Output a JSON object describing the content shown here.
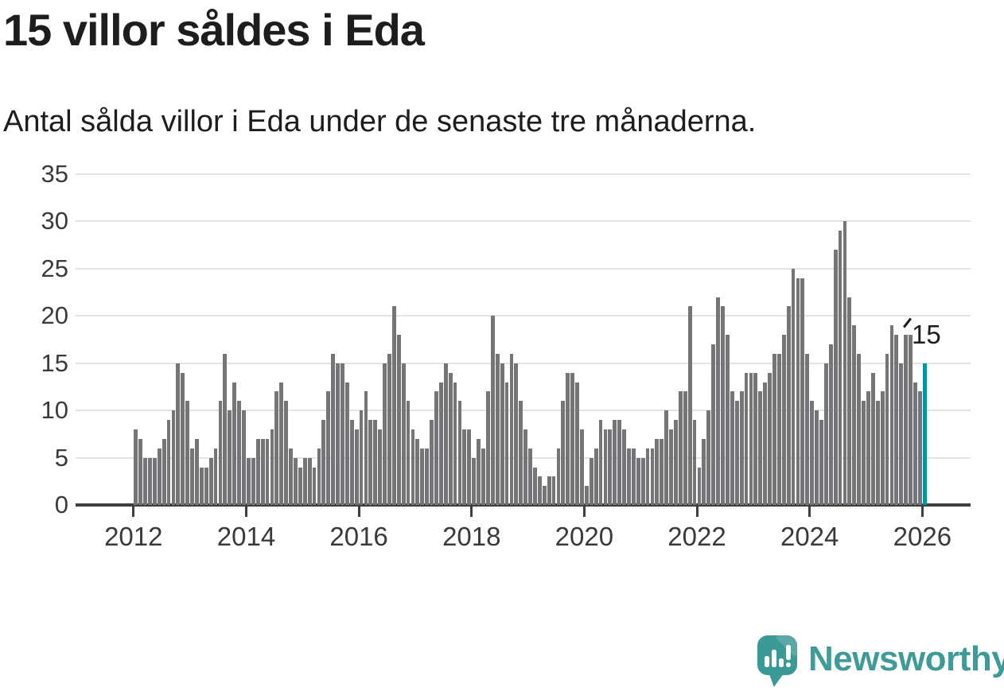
{
  "header": {
    "title": "15 villor såldes i Eda",
    "subtitle": "Antal sålda villor i Eda under de senaste tre månaderna."
  },
  "annotation": {
    "last_value_label": "15"
  },
  "footer": {
    "brand": "Newsworthy",
    "logo_icon": "speech-bubble-bar-chart-icon"
  },
  "colors": {
    "bar": "#757578",
    "highlight": "#00969b",
    "grid": "#e3e3e3",
    "axis": "#3f3f3e",
    "text": "#1d1d1b",
    "tick_text": "#3a3a3a",
    "brand_teal": "#3f9b98"
  },
  "chart_data": {
    "type": "bar",
    "title": "15 villor såldes i Eda",
    "subtitle": "Antal sålda villor i Eda under de senaste tre månaderna.",
    "frequency": "monthly",
    "x_start": "2012-01",
    "x_end": "2026-01",
    "ylim": [
      0,
      35
    ],
    "yticks": [
      0,
      5,
      10,
      15,
      20,
      25,
      30,
      35
    ],
    "xticks": [
      "2012",
      "2014",
      "2016",
      "2018",
      "2020",
      "2022",
      "2024",
      "2026"
    ],
    "grid": true,
    "legend": "none",
    "highlight_last": true,
    "last_value": 15,
    "values": [
      8,
      7,
      5,
      5,
      5,
      6,
      7,
      9,
      10,
      15,
      14,
      11,
      6,
      7,
      4,
      4,
      5,
      6,
      11,
      16,
      10,
      13,
      11,
      10,
      5,
      5,
      7,
      7,
      7,
      8,
      12,
      13,
      11,
      6,
      5,
      4,
      5,
      5,
      4,
      6,
      9,
      12,
      16,
      15,
      15,
      13,
      9,
      8,
      10,
      12,
      9,
      9,
      8,
      15,
      16,
      21,
      18,
      15,
      11,
      8,
      7,
      6,
      6,
      9,
      12,
      13,
      15,
      14,
      13,
      11,
      8,
      8,
      5,
      7,
      6,
      12,
      20,
      16,
      15,
      13,
      16,
      15,
      11,
      8,
      6,
      4,
      3,
      2,
      3,
      3,
      6,
      11,
      14,
      14,
      13,
      8,
      2,
      5,
      6,
      9,
      8,
      8,
      9,
      9,
      8,
      6,
      6,
      5,
      5,
      6,
      6,
      7,
      7,
      10,
      8,
      9,
      12,
      12,
      21,
      9,
      4,
      7,
      10,
      17,
      22,
      21,
      18,
      12,
      11,
      12,
      14,
      14,
      14,
      12,
      13,
      14,
      16,
      16,
      18,
      21,
      25,
      24,
      24,
      16,
      11,
      10,
      9,
      15,
      17,
      27,
      29,
      30,
      22,
      19,
      16,
      11,
      12,
      14,
      11,
      12,
      16,
      19,
      18,
      15,
      18,
      18,
      13,
      12,
      15
    ]
  }
}
